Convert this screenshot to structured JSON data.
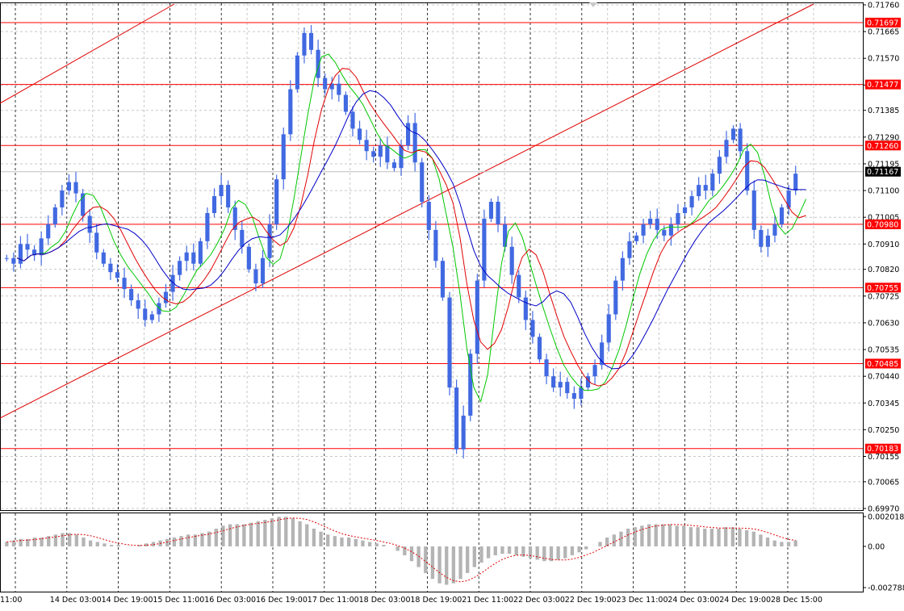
{
  "chart_data": {
    "type": "candlestick",
    "symbol_hint": "",
    "x_tick_labels": [
      "11:00",
      "14 Dec 03:00",
      "14 Dec 19:00",
      "15 Dec 11:00",
      "16 Dec 03:00",
      "16 Dec 19:00",
      "17 Dec 11:00",
      "18 Dec 03:00",
      "18 Dec 19:00",
      "21 Dec 11:00",
      "22 Dec 03:00",
      "22 Dec 19:00",
      "23 Dec 11:00",
      "24 Dec 03:00",
      "24 Dec 19:00",
      "28 Dec 15:00"
    ],
    "y_ticks": [
      "0.71760",
      "0.71665",
      "0.71570",
      "0.71475",
      "0.71385",
      "0.71290",
      "0.71195",
      "0.71100",
      "0.71005",
      "0.70910",
      "0.70820",
      "0.70725",
      "0.70630",
      "0.70535",
      "0.70440",
      "0.70345",
      "0.70250",
      "0.70155",
      "0.70065",
      "0.69970"
    ],
    "ylim": [
      0.6997,
      0.7176
    ],
    "horizontal_levels": [
      "0.71697",
      "0.71477",
      "0.71260",
      "0.70980",
      "0.70755",
      "0.70485",
      "0.70183"
    ],
    "current_price": "0.71167",
    "level_color": "#ff0000",
    "current_price_color": "#000000",
    "candle_color": "#4169e1",
    "ma_fast_color": "#00c800",
    "ma_mid_color": "#e00000",
    "ma_slow_color": "#0000c8",
    "close_series": [
      0.7086,
      0.7084,
      0.7091,
      0.7089,
      0.7087,
      0.7093,
      0.7098,
      0.7104,
      0.711,
      0.7113,
      0.7109,
      0.7101,
      0.7095,
      0.7088,
      0.7084,
      0.7081,
      0.7079,
      0.7075,
      0.7071,
      0.7068,
      0.7064,
      0.7066,
      0.707,
      0.7074,
      0.708,
      0.7085,
      0.7088,
      0.7084,
      0.7092,
      0.7102,
      0.7108,
      0.7112,
      0.7104,
      0.7096,
      0.709,
      0.7082,
      0.7077,
      0.7086,
      0.7098,
      0.7114,
      0.713,
      0.7146,
      0.7158,
      0.7166,
      0.716,
      0.715,
      0.7146,
      0.7148,
      0.7144,
      0.7138,
      0.7132,
      0.7128,
      0.7124,
      0.7122,
      0.7126,
      0.712,
      0.7118,
      0.7126,
      0.7134,
      0.712,
      0.7106,
      0.7096,
      0.7085,
      0.7072,
      0.704,
      0.7018,
      0.703,
      0.7052,
      0.7078,
      0.71,
      0.7106,
      0.7098,
      0.709,
      0.708,
      0.7072,
      0.7064,
      0.7058,
      0.705,
      0.7044,
      0.704,
      0.7042,
      0.7038,
      0.7036,
      0.704,
      0.7044,
      0.7048,
      0.7056,
      0.7066,
      0.7078,
      0.7086,
      0.7092,
      0.7094,
      0.7098,
      0.71,
      0.7096,
      0.7094,
      0.7098,
      0.7102,
      0.7104,
      0.7108,
      0.7112,
      0.711,
      0.7116,
      0.7122,
      0.7128,
      0.7132,
      0.7124,
      0.711,
      0.7096,
      0.709,
      0.7094,
      0.7098,
      0.7104,
      0.711,
      0.7116
    ],
    "histogram_labels": [
      "0.002018",
      "0.00",
      "-0.002788"
    ],
    "histogram_ylim": [
      -0.002788,
      0.002018
    ],
    "histogram_series": [
      0.0003,
      0.0004,
      0.0005,
      0.0005,
      0.0006,
      0.0006,
      0.0007,
      0.0008,
      0.0009,
      0.0009,
      0.0008,
      0.0006,
      0.0004,
      0.0003,
      0.0002,
      0.0001,
      0.0001,
      0.0,
      0.0,
      0.0001,
      0.0002,
      0.0003,
      0.0004,
      0.0005,
      0.0006,
      0.0007,
      0.0008,
      0.0008,
      0.0009,
      0.001,
      0.0012,
      0.0014,
      0.0015,
      0.0015,
      0.0015,
      0.0016,
      0.0017,
      0.0018,
      0.0019,
      0.002,
      0.002,
      0.0019,
      0.0017,
      0.0015,
      0.0012,
      0.001,
      0.0008,
      0.0007,
      0.0006,
      0.0006,
      0.0005,
      0.0004,
      0.0003,
      0.0002,
      0.0001,
      0.0,
      -0.0003,
      -0.0006,
      -0.001,
      -0.0014,
      -0.0018,
      -0.0022,
      -0.0025,
      -0.0026,
      -0.0025,
      -0.0022,
      -0.0018,
      -0.0014,
      -0.0011,
      -0.0008,
      -0.0006,
      -0.0005,
      -0.0005,
      -0.0006,
      -0.0007,
      -0.0008,
      -0.0009,
      -0.001,
      -0.001,
      -0.0009,
      -0.0008,
      -0.0006,
      -0.0004,
      -0.0002,
      0.0,
      0.0003,
      0.0006,
      0.0008,
      0.001,
      0.0012,
      0.0013,
      0.0014,
      0.0015,
      0.0015,
      0.0015,
      0.0015,
      0.0014,
      0.0014,
      0.0013,
      0.0013,
      0.0012,
      0.0012,
      0.0012,
      0.0013,
      0.0013,
      0.0012,
      0.0011,
      0.001,
      0.0008,
      0.0006,
      0.0004,
      0.0003,
      0.0003,
      0.0004
    ]
  }
}
